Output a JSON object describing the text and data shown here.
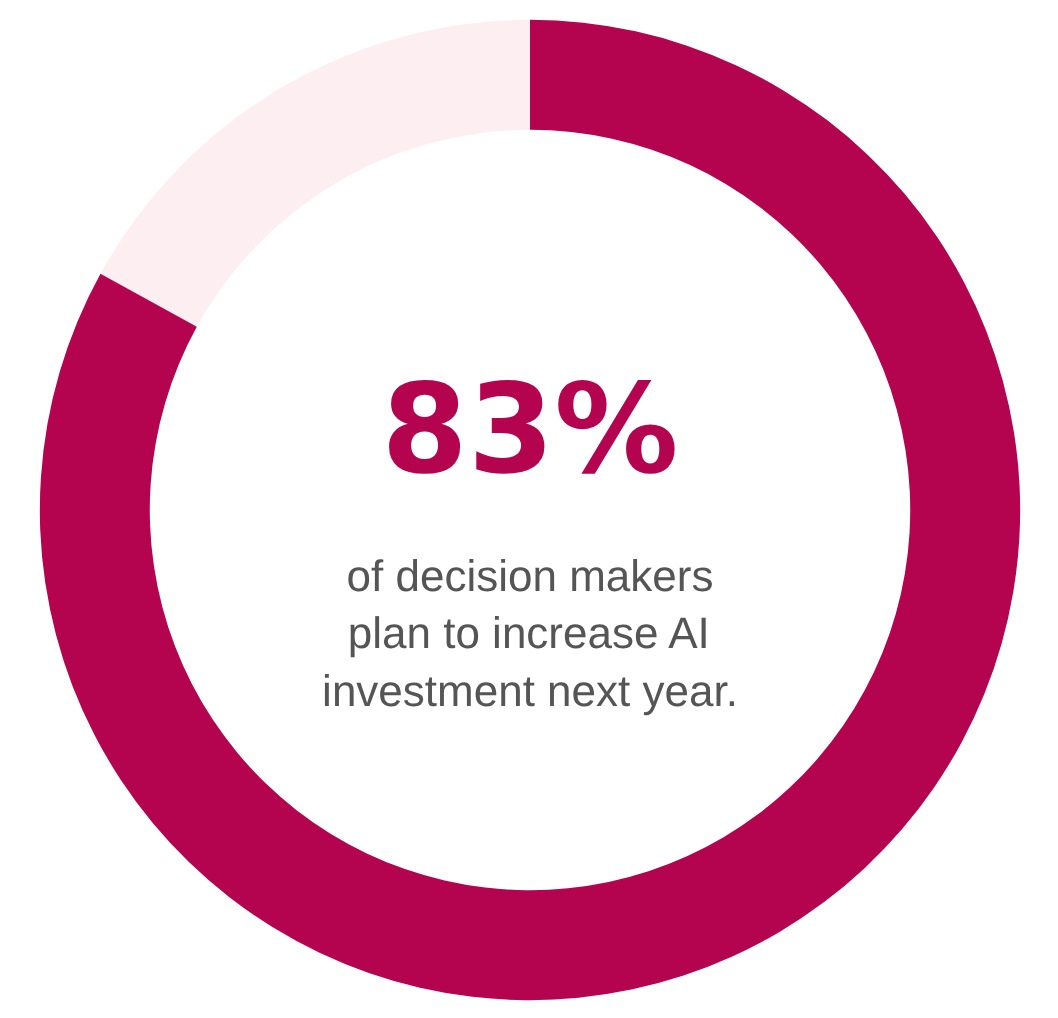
{
  "chart_data": {
    "type": "donut",
    "categories": [
      null,
      null
    ],
    "values": [
      83,
      17
    ],
    "colors": [
      "#b5044f",
      "#fdeef1"
    ],
    "annotations": [
      "83%",
      "of decision makers plan to increase AI investment next year."
    ]
  }
}
